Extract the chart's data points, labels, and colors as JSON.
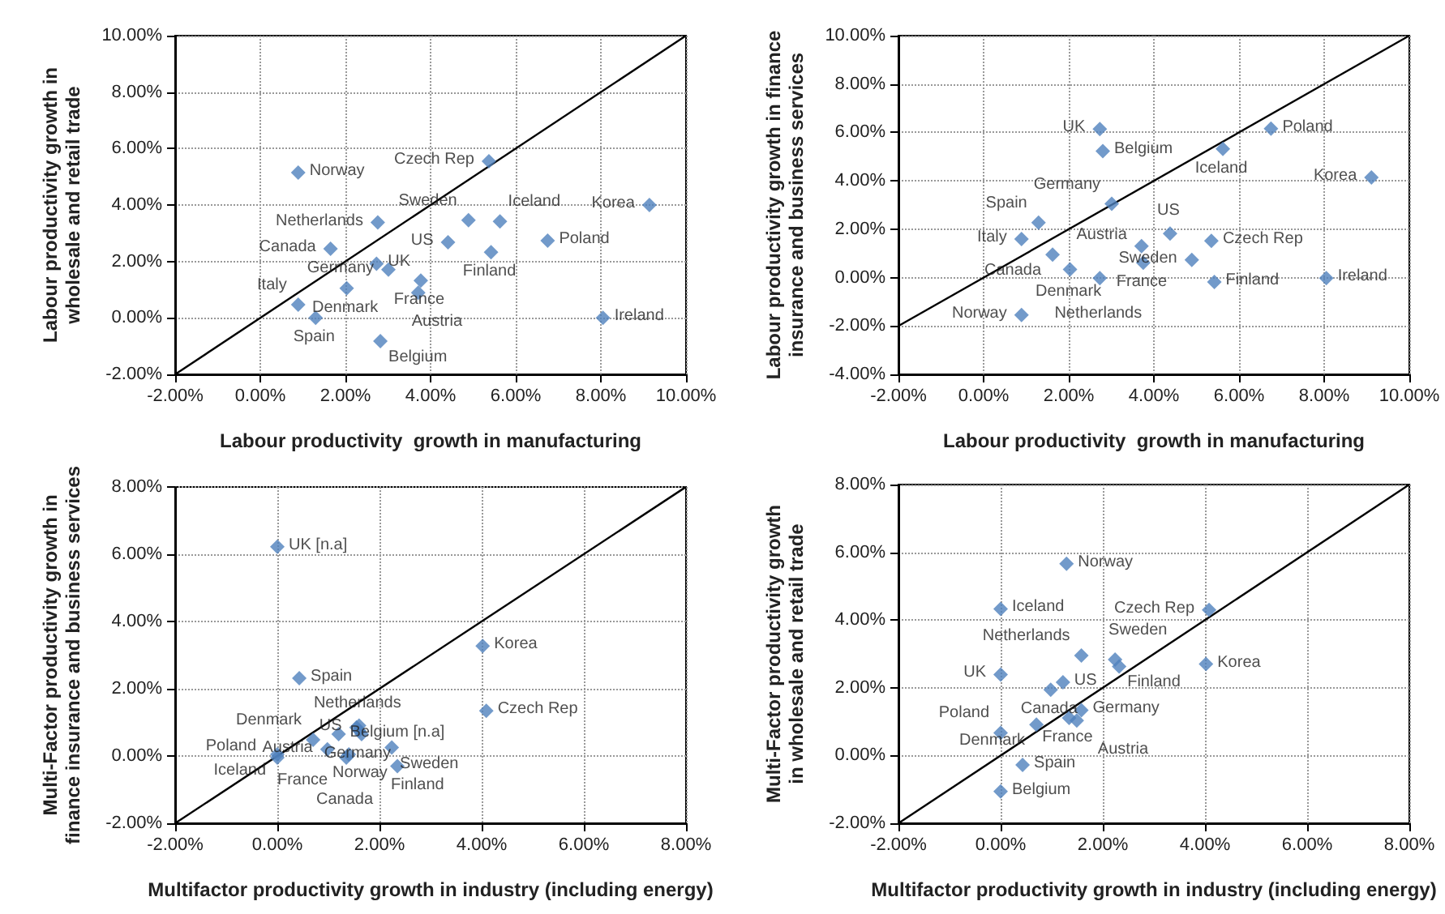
{
  "chart_data": [
    {
      "type": "scatter",
      "xlabel": "Labour productivity  growth in manufacturing",
      "ylabel": "Labour productivity growth in wholesale and retail trade",
      "xlim": [
        -2,
        10
      ],
      "ylim": [
        -2,
        10
      ],
      "xticks": [
        {
          "value": -2,
          "label": "-2.00%"
        },
        {
          "value": 0,
          "label": "0.00%"
        },
        {
          "value": 2,
          "label": "2.00%"
        },
        {
          "value": 4,
          "label": "4.00%"
        },
        {
          "value": 6,
          "label": "6.00%"
        },
        {
          "value": 8,
          "label": "8.00%"
        },
        {
          "value": 10,
          "label": "10.00%"
        }
      ],
      "yticks": [
        {
          "value": -2,
          "label": "-2.00%"
        },
        {
          "value": 0,
          "label": "0.00%"
        },
        {
          "value": 2,
          "label": "2.00%"
        },
        {
          "value": 4,
          "label": "4.00%"
        },
        {
          "value": 6,
          "label": "6.00%"
        },
        {
          "value": 8,
          "label": "8.00%"
        },
        {
          "value": 10,
          "label": "10.00%"
        }
      ],
      "grid": true,
      "marker": "diamond",
      "series": [
        {
          "color": "#4f81bd",
          "x": [
            0.89,
            5.37,
            9.14,
            2.76,
            4.89,
            5.63,
            4.41,
            6.75,
            1.65,
            5.42,
            2.73,
            3.01,
            3.77,
            3.71,
            2.03,
            0.89,
            1.3,
            2.82,
            8.05
          ],
          "values": [
            5.15,
            5.55,
            4.0,
            3.38,
            3.46,
            3.42,
            2.68,
            2.74,
            2.45,
            2.33,
            1.92,
            1.71,
            1.32,
            0.89,
            1.05,
            0.47,
            0.0,
            -0.82,
            0.0
          ],
          "value_labels": [
            "Norway",
            "Czech Rep",
            "Korea",
            "Netherlands",
            "Sweden",
            "Iceland",
            "US",
            "Poland",
            "Canada",
            "Finland",
            "UK",
            "Germany",
            "France",
            "Austria",
            "Denmark",
            "Italy",
            "Spain",
            "Belgium",
            "Ireland"
          ]
        },
        {
          "type": "line",
          "marker": "none",
          "color": "#000000",
          "x": [
            -2,
            10
          ],
          "values": [
            -2,
            10
          ]
        }
      ]
    },
    {
      "type": "scatter",
      "xlabel": "Labour productivity  growth in manufacturing",
      "ylabel": "Labour productivity growth in finance insurance and business services",
      "xlim": [
        -2,
        10
      ],
      "ylim": [
        -4,
        10
      ],
      "xticks": [
        {
          "value": -2,
          "label": "-2.00%"
        },
        {
          "value": 0,
          "label": "0.00%"
        },
        {
          "value": 2,
          "label": "2.00%"
        },
        {
          "value": 4,
          "label": "4.00%"
        },
        {
          "value": 6,
          "label": "6.00%"
        },
        {
          "value": 8,
          "label": "8.00%"
        },
        {
          "value": 10,
          "label": "10.00%"
        }
      ],
      "yticks": [
        {
          "value": -4,
          "label": "-4.00%"
        },
        {
          "value": -2,
          "label": "-2.00%"
        },
        {
          "value": 0,
          "label": "0.00%"
        },
        {
          "value": 2,
          "label": "2.00%"
        },
        {
          "value": 4,
          "label": "4.00%"
        },
        {
          "value": 6,
          "label": "6.00%"
        },
        {
          "value": 8,
          "label": "8.00%"
        },
        {
          "value": 10,
          "label": "10.00%"
        }
      ],
      "grid": true,
      "marker": "diamond",
      "series": [
        {
          "color": "#4f81bd",
          "x": [
            2.73,
            6.75,
            2.8,
            5.62,
            9.11,
            3.01,
            1.29,
            4.38,
            0.89,
            5.35,
            3.71,
            1.62,
            3.75,
            4.89,
            2.03,
            2.73,
            5.42,
            8.05,
            0.89
          ],
          "values": [
            6.14,
            6.16,
            5.23,
            5.32,
            4.14,
            3.05,
            2.27,
            1.82,
            1.59,
            1.52,
            1.3,
            0.95,
            0.61,
            0.73,
            0.34,
            -0.02,
            -0.18,
            -0.02,
            -1.55
          ],
          "value_labels": [
            "UK",
            "Poland",
            "Belgium",
            "Iceland",
            "Korea",
            "Germany",
            "Spain",
            "US",
            "Italy",
            "Czech Rep",
            "Austria",
            "Canada",
            "France",
            "Sweden",
            "Denmark",
            "Netherlands",
            "Finland",
            "Ireland",
            "Norway"
          ]
        },
        {
          "type": "line",
          "marker": "none",
          "color": "#000000",
          "x": [
            -2,
            10
          ],
          "values": [
            -2,
            10
          ]
        }
      ]
    },
    {
      "type": "scatter",
      "xlabel": "Multifactor productivity growth in industry (including energy)",
      "ylabel": "Multi-Factor productivity growth in finance insurance and business services",
      "xlim": [
        -2,
        8
      ],
      "ylim": [
        -2,
        8
      ],
      "xticks": [
        {
          "value": -2,
          "label": "-2.00%"
        },
        {
          "value": 0,
          "label": "0.00%"
        },
        {
          "value": 2,
          "label": "2.00%"
        },
        {
          "value": 4,
          "label": "4.00%"
        },
        {
          "value": 6,
          "label": "6.00%"
        },
        {
          "value": 8,
          "label": "8.00%"
        }
      ],
      "yticks": [
        {
          "value": -2,
          "label": "-2.00%"
        },
        {
          "value": 0,
          "label": "0.00%"
        },
        {
          "value": 2,
          "label": "2.00%"
        },
        {
          "value": 4,
          "label": "4.00%"
        },
        {
          "value": 6,
          "label": "6.00%"
        },
        {
          "value": 8,
          "label": "8.00%"
        }
      ],
      "grid": true,
      "marker": "diamond",
      "series": [
        {
          "color": "#4f81bd",
          "x": [
            0,
            4.02,
            0.43,
            4.09,
            1.2,
            1.55,
            1.6,
            1.6,
            1.65,
            0.7,
            0.98,
            2.24,
            2.35,
            1.4,
            1.35,
            0,
            0
          ],
          "values": [
            6.22,
            3.27,
            2.31,
            1.34,
            0.65,
            0.85,
            0.9,
            0.75,
            0.65,
            0.48,
            0.2,
            0.25,
            -0.3,
            0.05,
            -0.05,
            0.05,
            -0.05
          ],
          "value_labels": [
            "UK [n.a]",
            "Korea",
            "Spain",
            "Czech Rep",
            "Belgium [n.a]",
            "US",
            "Netherlands",
            "Germany",
            "Norway",
            "Denmark",
            "Austria",
            "Sweden",
            "Finland",
            "France",
            "Canada",
            "Iceland",
            "Poland"
          ]
        },
        {
          "type": "line",
          "marker": "none",
          "color": "#000000",
          "x": [
            -2,
            8
          ],
          "values": [
            -2,
            8
          ]
        }
      ]
    },
    {
      "type": "scatter",
      "xlabel": "Multifactor productivity growth in industry (including energy)",
      "ylabel": "Multi-Factor productivity growth in wholesale and retail trade",
      "xlim": [
        -2,
        8
      ],
      "ylim": [
        -2,
        8
      ],
      "xticks": [
        {
          "value": -2,
          "label": "-2.00%"
        },
        {
          "value": 0,
          "label": "0.00%"
        },
        {
          "value": 2,
          "label": "2.00%"
        },
        {
          "value": 4,
          "label": "4.00%"
        },
        {
          "value": 6,
          "label": "6.00%"
        },
        {
          "value": 8,
          "label": "8.00%"
        }
      ],
      "yticks": [
        {
          "value": -2,
          "label": "-2.00%"
        },
        {
          "value": 0,
          "label": "0.00%"
        },
        {
          "value": 2,
          "label": "2.00%"
        },
        {
          "value": 4,
          "label": "4.00%"
        },
        {
          "value": 6,
          "label": "6.00%"
        },
        {
          "value": 8,
          "label": "8.00%"
        }
      ],
      "grid": true,
      "marker": "diamond",
      "series": [
        {
          "color": "#4f81bd",
          "x": [
            1.29,
            0,
            4.08,
            1.58,
            2.24,
            2.32,
            4.02,
            0,
            1.22,
            0.98,
            1.58,
            1.34,
            1.49,
            0.7,
            0,
            0.43,
            0
          ],
          "values": [
            5.66,
            4.33,
            4.3,
            2.95,
            2.83,
            2.63,
            2.7,
            2.39,
            2.16,
            1.94,
            1.34,
            1.11,
            1.03,
            0.91,
            0.67,
            -0.28,
            -1.06
          ],
          "value_labels": [
            "Norway",
            "Iceland",
            "Czech Rep",
            "Netherlands",
            "Sweden",
            "Finland",
            "Korea",
            "UK",
            "US",
            "Canada",
            "Germany",
            "France",
            "Austria",
            "Denmark",
            "Poland",
            "Spain",
            "Belgium"
          ]
        },
        {
          "type": "line",
          "marker": "none",
          "color": "#000000",
          "x": [
            -2,
            8
          ],
          "values": [
            -2,
            8
          ]
        }
      ]
    }
  ]
}
